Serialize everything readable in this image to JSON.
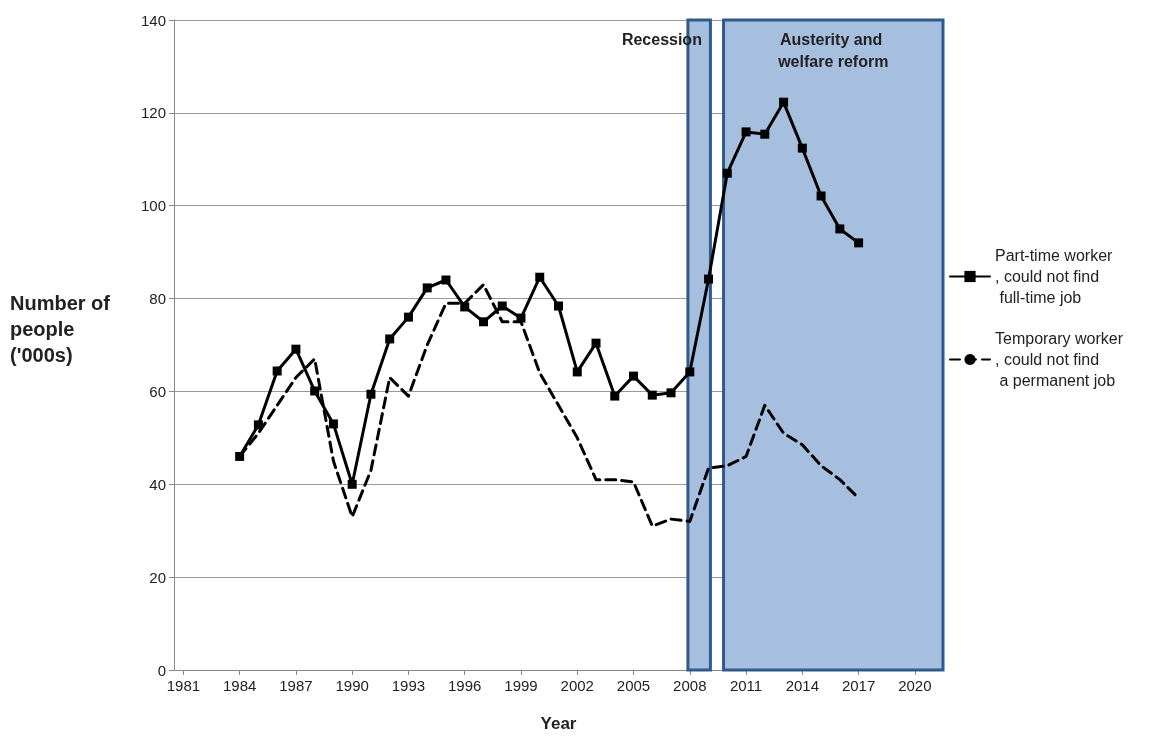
{
  "chart_data": {
    "type": "line",
    "xlabel": "Year",
    "ylabel": "Number of people ('000s)",
    "x": [
      1984,
      1985,
      1986,
      1987,
      1988,
      1989,
      1990,
      1991,
      1992,
      1993,
      1994,
      1995,
      1996,
      1997,
      1998,
      1999,
      2000,
      2001,
      2002,
      2003,
      2004,
      2005,
      2006,
      2007,
      2008,
      2009,
      2010,
      2011,
      2012,
      2013,
      2014,
      2015,
      2016,
      2017
    ],
    "series": [
      {
        "name": "Part-time worker, could not find full-time job",
        "color": "#000000",
        "marker": "square",
        "line_style": "solid",
        "values": [
          46,
          52.8,
          64.4,
          69.1,
          60.1,
          53,
          40,
          59.4,
          71.3,
          76,
          82.3,
          84,
          78.2,
          75,
          78.4,
          75.8,
          84.6,
          78.4,
          64.2,
          70.4,
          59,
          63.3,
          59.2,
          59.7,
          64.2,
          84.2,
          107,
          115.9,
          115.4,
          122.3,
          112.4,
          102.1,
          95,
          92
        ]
      },
      {
        "name": "Temporary worker, could not find a permanent job",
        "color": "#000000",
        "marker": "none",
        "line_style": "dashed",
        "values": [
          46,
          51,
          57,
          63,
          67,
          45,
          33,
          43,
          63,
          59,
          70,
          79,
          79,
          83,
          75,
          75,
          64,
          57,
          50,
          41,
          41,
          40.5,
          31,
          32.5,
          32,
          43.5,
          44,
          46,
          57,
          51,
          48.5,
          44,
          41,
          37
        ]
      }
    ],
    "xlim": [
      1980.5,
      2021.5
    ],
    "xticks": [
      1981,
      1984,
      1987,
      1990,
      1993,
      1996,
      1999,
      2002,
      2005,
      2008,
      2011,
      2014,
      2017,
      2020
    ],
    "ylim": [
      0,
      140
    ],
    "yticks": [
      0,
      20,
      40,
      60,
      80,
      100,
      120,
      140
    ],
    "grid": "y",
    "legend": "right",
    "bands": [
      {
        "axis": "x",
        "from": 2007.9,
        "to": 2009.1,
        "label": "Recession",
        "color": "#a6bfdf"
      },
      {
        "axis": "x",
        "from": 2009.8,
        "to": 2021.5,
        "label": "Austerity and welfare reform",
        "color": "#a6bfdf"
      }
    ]
  }
}
